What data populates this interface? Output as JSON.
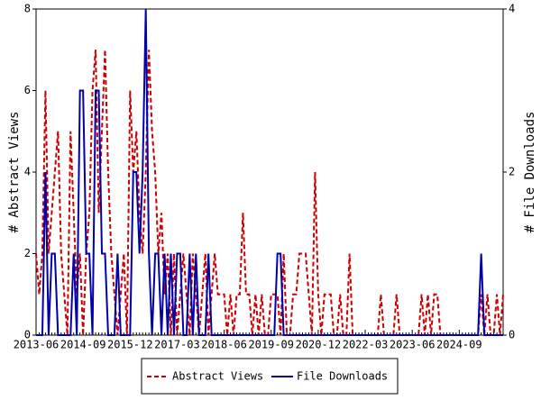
{
  "chart_data": {
    "type": "line",
    "y_label": "# Abstract Views",
    "y2_label": "# File Downloads",
    "categories": [
      "2013-06",
      null,
      null,
      null,
      null,
      null,
      null,
      null,
      null,
      null,
      null,
      null,
      null,
      null,
      null,
      "2014-09",
      null,
      null,
      null,
      null,
      null,
      null,
      null,
      null,
      null,
      null,
      null,
      null,
      null,
      null,
      "2015-12",
      null,
      null,
      null,
      null,
      null,
      null,
      null,
      null,
      null,
      null,
      null,
      null,
      null,
      null,
      "2017-03",
      null,
      null,
      null,
      null,
      null,
      null,
      null,
      null,
      null,
      null,
      null,
      null,
      null,
      null,
      "2018-06",
      null,
      null,
      null,
      null,
      null,
      null,
      null,
      null,
      null,
      null,
      null,
      null,
      null,
      null,
      "2019-09",
      null,
      null,
      null,
      null,
      null,
      null,
      null,
      null,
      null,
      null,
      null,
      null,
      null,
      null,
      "2020-12",
      null,
      null,
      null,
      null,
      null,
      null,
      null,
      null,
      null,
      null,
      null,
      null,
      null,
      null,
      "2022-03",
      null,
      null,
      null,
      null,
      null,
      null,
      null,
      null,
      null,
      null,
      null,
      null,
      null,
      null,
      "2023-06",
      null,
      null,
      null,
      null,
      null,
      null,
      null,
      null,
      null,
      null,
      null,
      null,
      null,
      null,
      "2024-09",
      null,
      null,
      null,
      null,
      null,
      null,
      null,
      null,
      null,
      null,
      null,
      null,
      null,
      null
    ],
    "series": [
      {
        "name": "Abstract Views",
        "color": "#cc0000",
        "dash": true,
        "values": [
          2,
          1,
          2,
          6,
          2,
          3,
          4,
          5,
          2,
          1,
          0,
          5,
          3,
          1,
          2,
          0,
          2,
          3,
          6,
          7,
          3,
          5,
          7,
          4,
          2,
          1,
          0,
          1,
          2,
          0,
          6,
          4,
          5,
          3,
          2,
          4,
          7,
          5,
          4,
          2,
          3,
          1,
          2,
          0,
          2,
          0,
          1,
          2,
          1,
          0,
          2,
          1,
          0,
          1,
          2,
          0,
          1,
          2,
          1,
          1,
          1,
          0,
          1,
          0,
          1,
          1,
          3,
          1,
          1,
          0,
          1,
          0,
          1,
          0,
          0,
          1,
          1,
          1,
          0,
          2,
          0,
          0,
          1,
          1,
          2,
          2,
          2,
          1,
          0,
          4,
          1,
          0,
          1,
          1,
          1,
          0,
          0,
          1,
          0,
          0,
          2,
          0,
          0,
          0,
          0,
          0,
          0,
          0,
          0,
          0,
          1,
          0,
          0,
          0,
          0,
          1,
          0,
          0,
          0,
          0,
          0,
          0,
          0,
          1,
          0,
          1,
          0,
          1,
          1,
          0,
          0,
          0,
          0,
          0,
          0,
          0,
          0,
          0,
          0,
          0,
          0,
          0,
          1,
          0,
          1,
          0,
          0,
          1,
          0,
          1
        ]
      },
      {
        "name": "File Downloads",
        "color": "#0000aa",
        "dash": false,
        "axis": "y2",
        "values": [
          0,
          0,
          0,
          2,
          0,
          1,
          1,
          0,
          0,
          0,
          0,
          0,
          1,
          0,
          3,
          3,
          1,
          1,
          0,
          3,
          3,
          1,
          1,
          0,
          0,
          0,
          1,
          0,
          0,
          0,
          0,
          2,
          2,
          1,
          2,
          4,
          1,
          0,
          1,
          1,
          0,
          1,
          0,
          1,
          0,
          1,
          1,
          0,
          0,
          1,
          0,
          1,
          0,
          0,
          0,
          1,
          0,
          0,
          0,
          0,
          0,
          0,
          0,
          0,
          0,
          0,
          0,
          0,
          0,
          0,
          0,
          0,
          0,
          0,
          0,
          0,
          0,
          1,
          1,
          0,
          0,
          0,
          0,
          0,
          0,
          0,
          0,
          0,
          0,
          0,
          0,
          0,
          0,
          0,
          0,
          0,
          0,
          0,
          0,
          0,
          0,
          0,
          0,
          0,
          0,
          0,
          0,
          0,
          0,
          0,
          0,
          0,
          0,
          0,
          0,
          0,
          0,
          0,
          0,
          0,
          0,
          0,
          0,
          0,
          0,
          0,
          0,
          0,
          0,
          0,
          0,
          0,
          0,
          0,
          0,
          0,
          0,
          0,
          0,
          0,
          0,
          0,
          1,
          0,
          0,
          0,
          0,
          0,
          0,
          0
        ]
      }
    ],
    "ylim": [
      0,
      8
    ],
    "yticks": [
      0,
      2,
      4,
      6,
      8
    ],
    "y2lim": [
      0,
      4
    ],
    "y2ticks": [
      0,
      2,
      4
    ],
    "legend": "bottom"
  }
}
